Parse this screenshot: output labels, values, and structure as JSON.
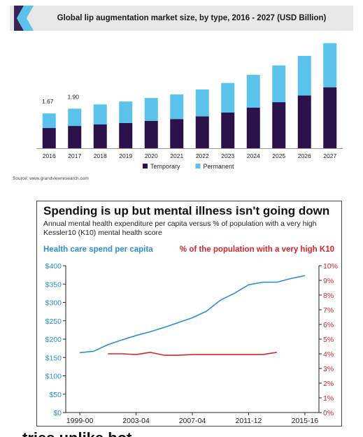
{
  "top_chart": {
    "title": "Global lip augmentation market size, by type, 2016 - 2027 (USD Billion)",
    "source": "Source: www.grandviewresearch.com",
    "colors": {
      "header_bg": "#e8e8e8",
      "logo_dark": "#3a2456",
      "logo_light": "#5bc2ec"
    }
  },
  "bottom_chart": {
    "title": "Spending is up but mental illness isn't going down",
    "subtitle": "Annual mental health expenditure per capita versus % of population with a very high Kessler10 (K10) mental health score",
    "left_axis_title": "Health care spend per capita",
    "right_axis_title": "% of the population with a very high K10"
  },
  "clipped_caption": "tries unlike bot",
  "chart_data": [
    {
      "type": "bar",
      "title": "Global lip augmentation market size, by type, 2016 - 2027 (USD Billion)",
      "stacked": true,
      "categories": [
        "2016",
        "2017",
        "2018",
        "2019",
        "2020",
        "2021",
        "2022",
        "2023",
        "2024",
        "2025",
        "2026",
        "2027"
      ],
      "series": [
        {
          "name": "Temporary",
          "color": "#2b1149",
          "values": [
            0.97,
            1.07,
            1.14,
            1.21,
            1.31,
            1.4,
            1.53,
            1.71,
            1.95,
            2.21,
            2.53,
            2.92
          ]
        },
        {
          "name": "Permanent",
          "color": "#5bc2ec",
          "values": [
            0.7,
            0.83,
            0.96,
            1.03,
            1.1,
            1.18,
            1.29,
            1.42,
            1.57,
            1.76,
            1.9,
            2.12
          ]
        }
      ],
      "data_labels": [
        {
          "category": "2016",
          "text": "1.67"
        },
        {
          "category": "2017",
          "text": "1.90"
        }
      ],
      "ylim": [
        0,
        5.5
      ],
      "legend": "bottom",
      "grid": false
    },
    {
      "type": "line",
      "title": "Spending is up but mental illness isn't going down",
      "x_tick_labels": [
        "1999-00",
        "2003-04",
        "2007-04",
        "2011-12",
        "2015-16"
      ],
      "x_tick_positions": [
        0,
        4,
        8,
        12,
        16
      ],
      "xlim": [
        -1,
        17
      ],
      "series": [
        {
          "name": "Health care spend per capita",
          "axis": "left",
          "color": "#2e8fcf",
          "x": [
            0,
            1,
            2,
            3,
            4,
            5,
            6,
            7,
            8,
            9,
            10,
            11,
            12,
            13,
            14,
            15,
            16
          ],
          "y": [
            163,
            167,
            185,
            198,
            210,
            220,
            232,
            245,
            258,
            276,
            306,
            325,
            348,
            355,
            355,
            365,
            373
          ]
        },
        {
          "name": "% of the population with a very high K10",
          "axis": "right",
          "color": "#d7262b",
          "x": [
            2,
            3,
            4,
            5,
            6,
            7,
            8,
            9,
            10,
            11,
            12,
            13,
            14
          ],
          "y": [
            4.0,
            4.0,
            3.95,
            4.1,
            3.9,
            3.9,
            3.95,
            3.95,
            3.95,
            3.95,
            3.95,
            3.95,
            4.1
          ]
        }
      ],
      "y_left": {
        "ylim": [
          0,
          400
        ],
        "ticks": [
          "$0",
          "$50",
          "$100",
          "$150",
          "$200",
          "$250",
          "$300",
          "$350",
          "$400"
        ]
      },
      "y_right": {
        "ylim": [
          0,
          10
        ],
        "ticks": [
          "0%",
          "1%",
          "2%",
          "3%",
          "4%",
          "5%",
          "6%",
          "7%",
          "8%",
          "9%",
          "10%"
        ]
      },
      "grid": false
    }
  ]
}
